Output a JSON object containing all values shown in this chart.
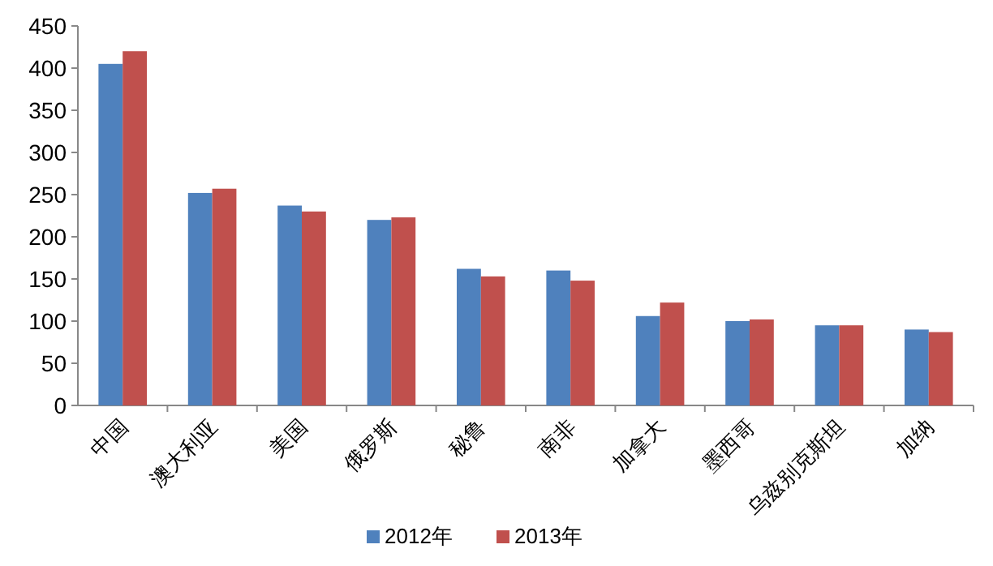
{
  "chart_data": {
    "type": "bar",
    "categories": [
      "中国",
      "澳大利亚",
      "美国",
      "俄罗斯",
      "秘鲁",
      "南非",
      "加拿大",
      "墨西哥",
      "乌兹别克斯坦",
      "加纳"
    ],
    "series": [
      {
        "name": "2012年",
        "color": "#4f81bd",
        "values": [
          405,
          252,
          237,
          220,
          162,
          160,
          106,
          100,
          95,
          90
        ]
      },
      {
        "name": "2013年",
        "color": "#c0504d",
        "values": [
          420,
          257,
          230,
          223,
          153,
          148,
          122,
          102,
          95,
          87
        ]
      }
    ],
    "ylim": [
      0,
      450
    ],
    "yticks": [
      0,
      50,
      100,
      150,
      200,
      250,
      300,
      350,
      400,
      450
    ],
    "legend": "bottom",
    "grid": false
  }
}
